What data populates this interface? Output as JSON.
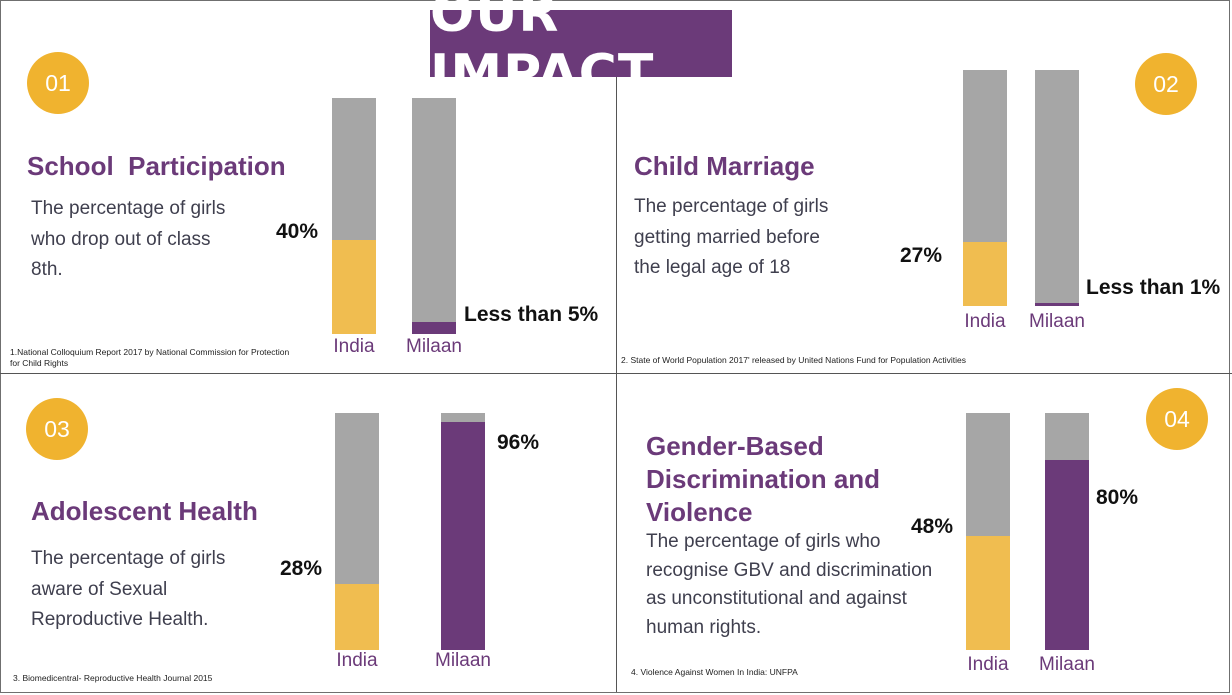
{
  "header": {
    "title": "OUR IMPACT"
  },
  "colors": {
    "purple": "#6b3a79",
    "yellow": "#f0bd50",
    "gray": "#a6a6a6",
    "badge": "#f0b32f"
  },
  "panels": [
    {
      "number": "01",
      "title": "School  Participation",
      "description": "The percentage of girls who drop out of class 8th.",
      "source": "1.National Colloquium Report 2017 by National Commission for Protection for Child Rights"
    },
    {
      "number": "02",
      "title": "Child Marriage",
      "description": "The percentage of girls getting married before the legal age of 18",
      "source": "2. State of World Population 2017' released by United Nations Fund for Population Activities"
    },
    {
      "number": "03",
      "title": "Adolescent Health",
      "description": "The percentage of girls aware of Sexual Reproductive Health.",
      "source": "3. Biomedicentral- Reproductive Health Journal 2015"
    },
    {
      "number": "04",
      "title": "Gender-Based Discrimination and Violence",
      "description": "The percentage of girls who recognise GBV and discrimination as unconstitutional and against human rights.",
      "source": "4. Violence Against Women In India: UNFPA"
    }
  ],
  "chart_data": [
    {
      "type": "bar",
      "categories": [
        "India",
        "Milaan"
      ],
      "values": [
        40,
        5
      ],
      "data_labels": [
        "40%",
        "Less than 5%"
      ],
      "ylim": [
        0,
        100
      ]
    },
    {
      "type": "bar",
      "categories": [
        "India",
        "Milaan"
      ],
      "values": [
        27,
        1
      ],
      "data_labels": [
        "27%",
        "Less than 1%"
      ],
      "ylim": [
        0,
        100
      ]
    },
    {
      "type": "bar",
      "categories": [
        "India",
        "Milaan"
      ],
      "values": [
        28,
        96
      ],
      "data_labels": [
        "28%",
        "96%"
      ],
      "ylim": [
        0,
        100
      ]
    },
    {
      "type": "bar",
      "categories": [
        "India",
        "Milaan"
      ],
      "values": [
        48,
        80
      ],
      "data_labels": [
        "48%",
        "80%"
      ],
      "ylim": [
        0,
        100
      ]
    }
  ]
}
